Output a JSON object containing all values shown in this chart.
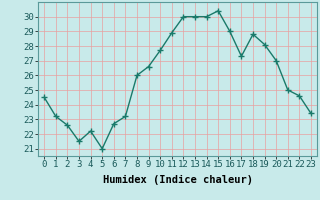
{
  "x": [
    0,
    1,
    2,
    3,
    4,
    5,
    6,
    7,
    8,
    9,
    10,
    11,
    12,
    13,
    14,
    15,
    16,
    17,
    18,
    19,
    20,
    21,
    22,
    23
  ],
  "y": [
    24.5,
    23.2,
    22.6,
    21.5,
    22.2,
    21.0,
    22.7,
    23.2,
    26.0,
    26.6,
    27.7,
    28.9,
    30.0,
    30.0,
    30.0,
    30.4,
    29.0,
    27.3,
    28.8,
    28.1,
    27.0,
    25.0,
    24.6,
    23.4
  ],
  "line_color": "#1a7a6a",
  "marker": "+",
  "bg_color": "#c8eaea",
  "grid_color": "#e8a0a0",
  "xlabel": "Humidex (Indice chaleur)",
  "ylim": [
    20.5,
    31
  ],
  "xlim": [
    -0.5,
    23.5
  ],
  "yticks": [
    21,
    22,
    23,
    24,
    25,
    26,
    27,
    28,
    29,
    30
  ],
  "xticks": [
    0,
    1,
    2,
    3,
    4,
    5,
    6,
    7,
    8,
    9,
    10,
    11,
    12,
    13,
    14,
    15,
    16,
    17,
    18,
    19,
    20,
    21,
    22,
    23
  ],
  "xlabel_fontsize": 7.5,
  "tick_fontsize": 6.5,
  "line_width": 1.0,
  "marker_size": 4
}
